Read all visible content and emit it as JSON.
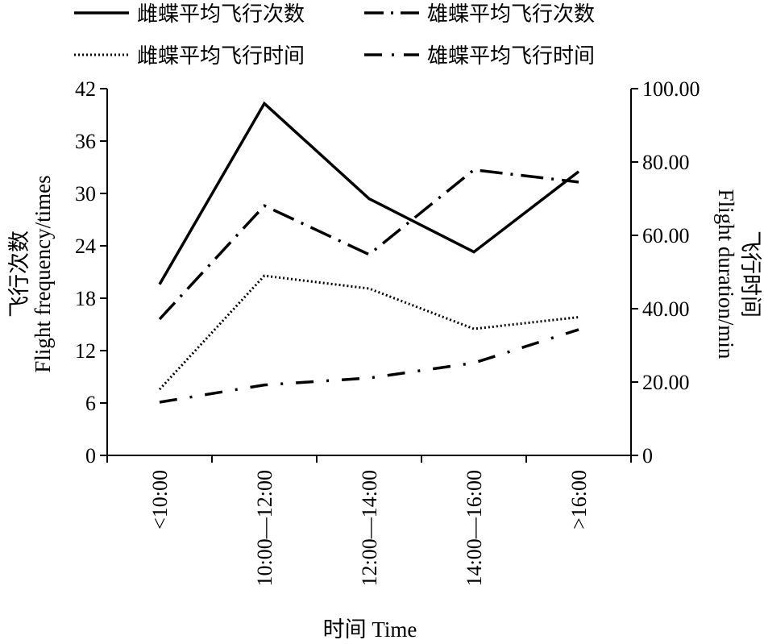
{
  "chart_data": {
    "type": "line",
    "categories": [
      "<10:00",
      "10:00—12:00",
      "12:00—14:00",
      "14:00—16:00",
      ">16:00"
    ],
    "xlabel": "时间 Time",
    "ylabel_left_cn": "飞行次数",
    "ylabel_left_en": "Flight frequency/times",
    "ylabel_right_cn": "飞行时间",
    "ylabel_right_en": "Flight duration/min",
    "ylim_left": [
      0,
      42
    ],
    "yticks_left": [
      "0",
      "6",
      "12",
      "18",
      "24",
      "30",
      "36",
      "42"
    ],
    "ylim_right": [
      0,
      100
    ],
    "yticks_right": [
      "0",
      "20.00",
      "40.00",
      "60.00",
      "80.00",
      "100.00"
    ],
    "grid": false,
    "legend_position": "top",
    "series": [
      {
        "name": "雌蝶平均飞行次数",
        "axis": "left",
        "style": "solid",
        "color": "#000000",
        "values": [
          19.6,
          40.3,
          29.4,
          23.3,
          32.5
        ]
      },
      {
        "name": "雄蝶平均飞行次数",
        "axis": "left",
        "style": "dashdot",
        "color": "#000000",
        "values": [
          15.6,
          28.6,
          23.0,
          32.7,
          31.3
        ]
      },
      {
        "name": "雌蝶平均飞行时间",
        "axis": "right",
        "style": "dotted",
        "color": "#000000",
        "values": [
          18.0,
          49.0,
          45.5,
          34.5,
          37.7
        ]
      },
      {
        "name": "雄蝶平均飞行时间",
        "axis": "right",
        "style": "dashdotsparse",
        "color": "#000000",
        "values": [
          14.5,
          19.2,
          21.1,
          25.2,
          34.3
        ]
      }
    ]
  }
}
